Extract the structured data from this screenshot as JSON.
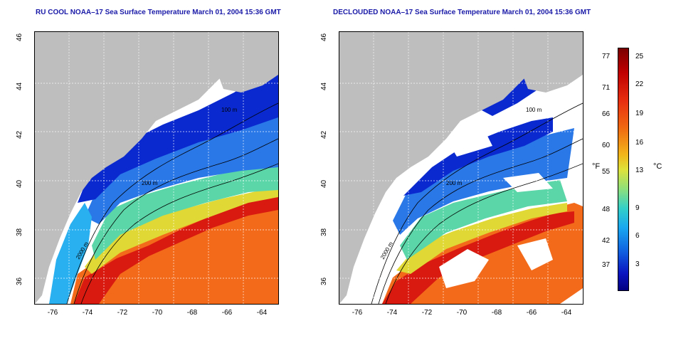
{
  "left_map": {
    "title": "RU COOL NOAA–17 Sea Surface Temperature March 01, 2004 15:36 GMT",
    "contour_labels": [
      "100 m",
      "200 m",
      "2000 m"
    ]
  },
  "right_map": {
    "title": "DECLOUDED NOAA–17 Sea Surface Temperature March 01, 2004 15:36 GMT",
    "contour_labels": [
      "100 m",
      "200 m",
      "2000 m"
    ]
  },
  "axes": {
    "y_ticks": [
      "46",
      "44",
      "42",
      "40",
      "38",
      "36"
    ],
    "x_ticks": [
      "-76",
      "-74",
      "-72",
      "-70",
      "-68",
      "-66",
      "-64"
    ]
  },
  "colorbar": {
    "fahrenheit_unit": "°F",
    "celsius_unit": "°C",
    "fahrenheit_ticks": [
      "77",
      "71",
      "66",
      "60",
      "55",
      "48",
      "42",
      "37"
    ],
    "celsius_ticks": [
      "25",
      "22",
      "19",
      "16",
      "13",
      "9",
      "6",
      "3"
    ]
  },
  "colors": {
    "land": "#bebebe",
    "title": "#1a1aa8",
    "no_data": "#ffffff"
  }
}
